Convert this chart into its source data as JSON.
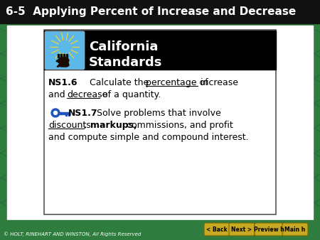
{
  "title": "6-5  Applying Percent of Increase and Decrease",
  "bg_color": "#2e7d3e",
  "title_bg": "#111111",
  "title_color": "#ffffff",
  "header_bg": "#000000",
  "header_text1": "California",
  "header_text2": "Standards",
  "copyright": "© HOLT, RINEHART AND WINSTON, All Rights Reserved",
  "btn_color": "#c8a820",
  "btn_labels": [
    "< Back",
    "Next >",
    "Preview h",
    "Main h"
  ],
  "cal_icon_bg": "#5bb8e8",
  "figsize": [
    4.5,
    3.38
  ],
  "dpi": 100
}
